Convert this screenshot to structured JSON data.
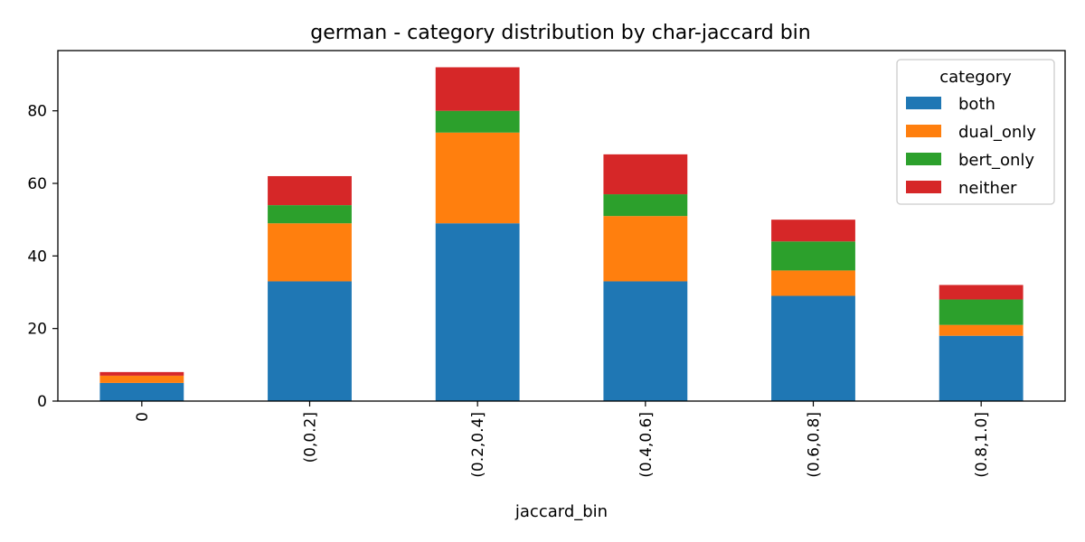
{
  "chart_data": {
    "type": "bar",
    "stacked": true,
    "title": "german - category distribution by char-jaccard bin",
    "xlabel": "jaccard_bin",
    "ylabel": "",
    "categories": [
      "0",
      "(0,0.2]",
      "(0.2,0.4]",
      "(0.4,0.6]",
      "(0.6,0.8]",
      "(0.8,1.0]"
    ],
    "ylim": [
      0,
      96.6
    ],
    "yticks": [
      "0",
      "20",
      "40",
      "60",
      "80"
    ],
    "legend_title": "category",
    "legend_position": "top-right",
    "grid": false,
    "series": [
      {
        "name": "both",
        "color": "#1f77b4",
        "values": [
          5,
          33,
          49,
          33,
          29,
          18
        ]
      },
      {
        "name": "dual_only",
        "color": "#ff7f0e",
        "values": [
          2,
          16,
          25,
          18,
          7,
          3
        ]
      },
      {
        "name": "bert_only",
        "color": "#2ca02c",
        "values": [
          0,
          5,
          6,
          6,
          8,
          7
        ]
      },
      {
        "name": "neither",
        "color": "#d62728",
        "values": [
          1,
          8,
          12,
          11,
          6,
          4
        ]
      }
    ]
  }
}
